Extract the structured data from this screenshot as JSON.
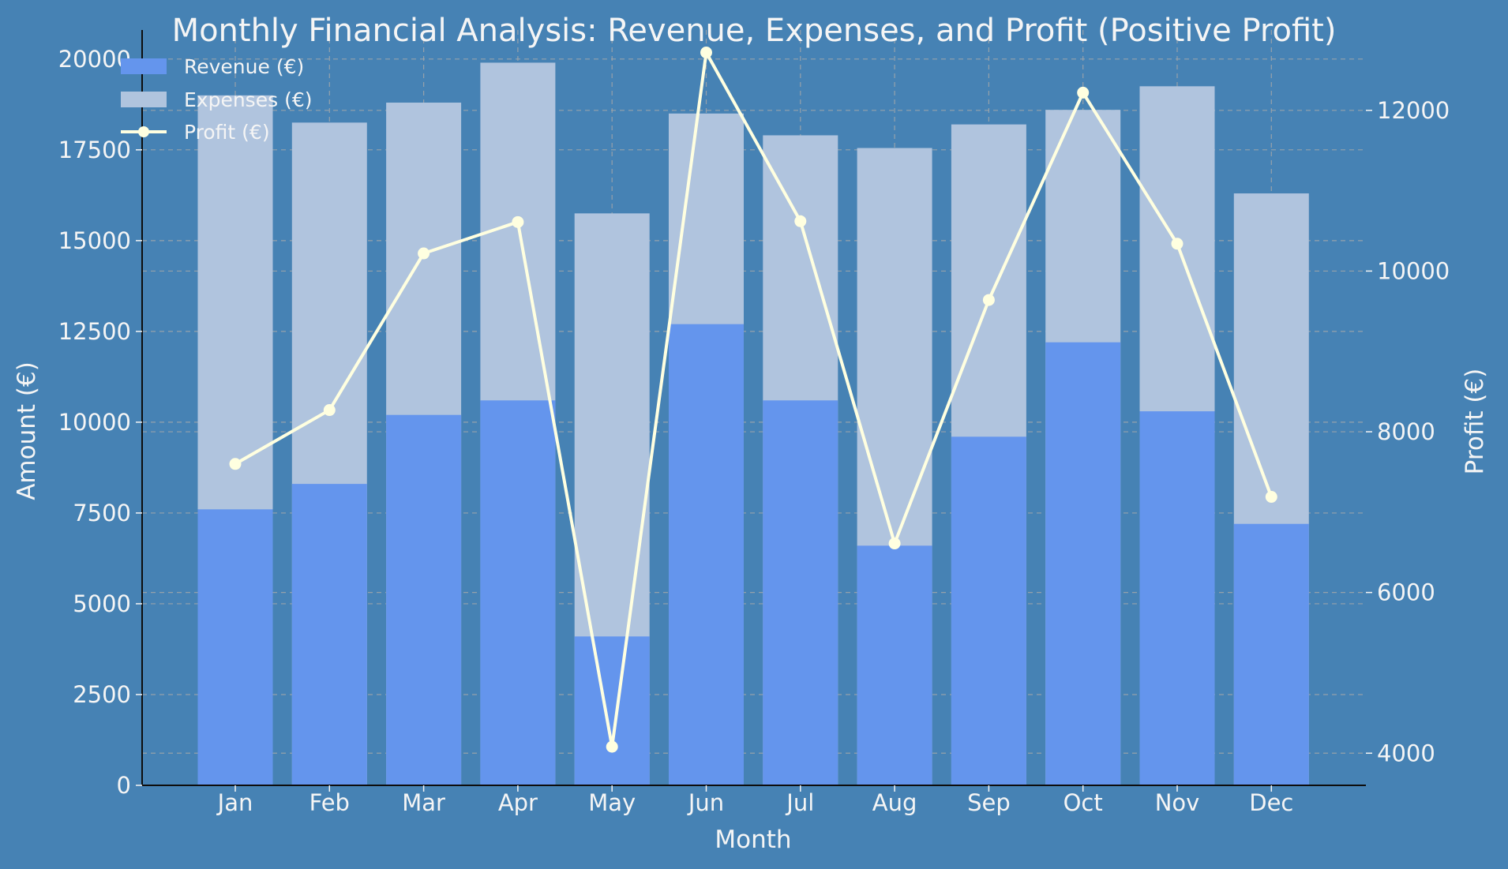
{
  "colors": {
    "background": "#4682B4",
    "revenue": "#6495ED",
    "expenses": "#B0C4DE",
    "profit": "#FFFFE0",
    "text": "#F5F5F5",
    "axis": "#0D0D0D",
    "grid": "#A9A9A9"
  },
  "chart_data": {
    "type": "bar",
    "title": "Monthly Financial Analysis: Revenue, Expenses, and Profit (Positive Profit)",
    "xlabel": "Month",
    "ylabel": "Amount (€)",
    "y2label": "Profit (€)",
    "categories": [
      "Jan",
      "Feb",
      "Mar",
      "Apr",
      "May",
      "Jun",
      "Jul",
      "Aug",
      "Sep",
      "Oct",
      "Nov",
      "Dec"
    ],
    "ylim": [
      0,
      20800
    ],
    "y2lim": [
      3600,
      13000
    ],
    "yticks": [
      0,
      2500,
      5000,
      7500,
      10000,
      12500,
      15000,
      17500,
      20000
    ],
    "y2ticks": [
      4000,
      6000,
      8000,
      10000,
      12000
    ],
    "grid": true,
    "legend": "top-left",
    "series": [
      {
        "name": "Revenue (€)",
        "type": "bar",
        "axis": "left",
        "values": [
          7600,
          8300,
          10200,
          10600,
          4100,
          12700,
          10600,
          6600,
          9600,
          12200,
          10300,
          7200
        ]
      },
      {
        "name": "Expenses (€)",
        "type": "bar",
        "axis": "left",
        "values": [
          19000,
          18250,
          18800,
          19900,
          15750,
          18500,
          17900,
          17550,
          18200,
          18600,
          19250,
          16300
        ]
      },
      {
        "name": "Profit (€)",
        "type": "line",
        "axis": "right",
        "values": [
          7600,
          8270,
          10220,
          10610,
          4080,
          12720,
          10620,
          6610,
          9640,
          12220,
          10340,
          7190
        ]
      }
    ]
  }
}
